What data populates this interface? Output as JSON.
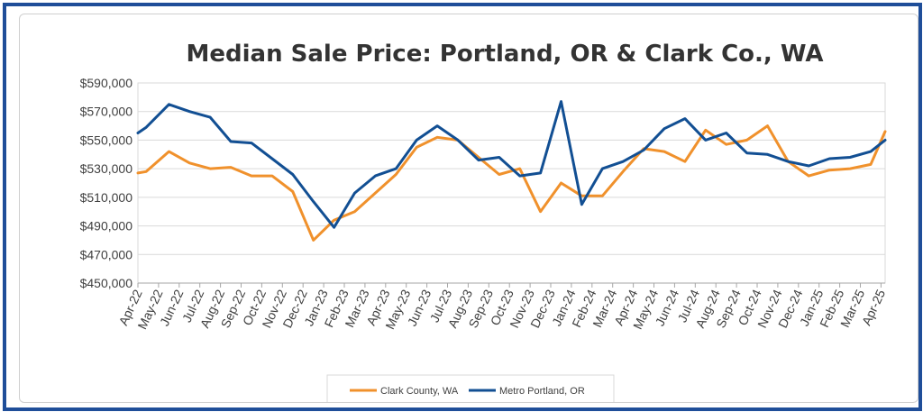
{
  "chart_data": {
    "type": "line",
    "title": "Median Sale Price: Portland, OR & Clark Co., WA",
    "xlabel": "",
    "ylabel": "",
    "ylim": [
      450000,
      590000
    ],
    "yticks": [
      450000,
      470000,
      490000,
      510000,
      530000,
      550000,
      570000,
      590000
    ],
    "ytick_labels": [
      "$450,000",
      "$470,000",
      "$490,000",
      "$510,000",
      "$530,000",
      "$550,000",
      "$570,000",
      "$590,000"
    ],
    "grid": true,
    "legend_position": "bottom-center",
    "categories": [
      "Apr-22",
      "May-22",
      "Jun-22",
      "Jul-22",
      "Aug-22",
      "Sep-22",
      "Oct-22",
      "Nov-22",
      "Dec-22",
      "Jan-23",
      "Feb-23",
      "Mar-23",
      "Apr-23",
      "May-23",
      "Jun-23",
      "Jul-23",
      "Aug-23",
      "Sep-23",
      "Oct-23",
      "Nov-23",
      "Dec-23",
      "Jan-24",
      "Feb-24",
      "Mar-24",
      "Apr-24",
      "May-24",
      "Jun-24",
      "Jul-24",
      "Aug-24",
      "Sep-24",
      "Oct-24",
      "Nov-24",
      "Dec-24",
      "Jan-25",
      "Feb-25",
      "Mar-25",
      "Apr-25"
    ],
    "x": [
      0,
      0.4,
      1,
      2,
      3,
      3.5,
      4,
      5,
      6,
      7,
      8,
      9,
      10,
      11,
      12,
      13,
      14,
      15,
      16,
      17,
      18,
      19,
      20,
      20.5,
      21,
      22,
      23,
      24,
      25,
      26,
      26.8,
      27,
      28,
      29,
      29.5,
      30,
      31,
      32,
      32.5,
      33,
      34,
      35,
      35.2,
      36,
      37,
      38,
      39,
      40,
      41,
      42,
      43,
      44,
      45,
      46,
      47,
      48,
      49,
      50,
      51,
      52,
      53,
      54,
      55,
      56,
      57,
      58,
      59,
      60,
      61,
      62,
      63,
      64,
      65,
      66,
      67,
      68,
      69,
      70,
      71,
      72
    ],
    "series": [
      {
        "name": "Clark County, WA",
        "color": "#f0912c",
        "points": [
          [
            0,
            527000
          ],
          [
            0.4,
            528000
          ],
          [
            1.5,
            542000
          ],
          [
            2.5,
            534000
          ],
          [
            3.5,
            530000
          ],
          [
            4.5,
            531000
          ],
          [
            5.5,
            525000
          ],
          [
            6.5,
            525000
          ],
          [
            7.5,
            514000
          ],
          [
            8.5,
            480000
          ],
          [
            9.5,
            494000
          ],
          [
            10.5,
            500000
          ],
          [
            11.5,
            513000
          ],
          [
            12.5,
            526000
          ],
          [
            13.5,
            545000
          ],
          [
            14.5,
            552000
          ],
          [
            15.5,
            550000
          ],
          [
            16.5,
            538000
          ],
          [
            17.5,
            526000
          ],
          [
            18.5,
            530000
          ],
          [
            19.5,
            500000
          ],
          [
            20.5,
            520000
          ],
          [
            21.5,
            511000
          ],
          [
            22.5,
            511000
          ],
          [
            23.5,
            528000
          ],
          [
            24.5,
            544000
          ],
          [
            25.5,
            542000
          ],
          [
            26.5,
            535000
          ],
          [
            27.5,
            557000
          ],
          [
            28.5,
            547000
          ],
          [
            29.5,
            550000
          ],
          [
            30.5,
            560000
          ],
          [
            31.5,
            535000
          ],
          [
            32.5,
            525000
          ],
          [
            33.5,
            529000
          ],
          [
            34.5,
            530000
          ],
          [
            35.5,
            533000
          ],
          [
            36.2,
            556000
          ]
        ]
      },
      {
        "name": "Metro Portland, OR",
        "color": "#124f93",
        "points": [
          [
            0,
            555000
          ],
          [
            0.4,
            559000
          ],
          [
            1.5,
            575000
          ],
          [
            2.5,
            570000
          ],
          [
            3.5,
            566000
          ],
          [
            4.5,
            549000
          ],
          [
            5.5,
            548000
          ],
          [
            6.5,
            537000
          ],
          [
            7.5,
            526000
          ],
          [
            8.5,
            507000
          ],
          [
            9.5,
            489000
          ],
          [
            10.5,
            513000
          ],
          [
            11.5,
            525000
          ],
          [
            12.5,
            530000
          ],
          [
            13.5,
            550000
          ],
          [
            14.5,
            560000
          ],
          [
            15.5,
            550000
          ],
          [
            16.5,
            536000
          ],
          [
            17.5,
            538000
          ],
          [
            18.5,
            525000
          ],
          [
            19.5,
            527000
          ],
          [
            20.5,
            577000
          ],
          [
            21.5,
            505000
          ],
          [
            22.5,
            530000
          ],
          [
            23.5,
            535000
          ],
          [
            24.5,
            543000
          ],
          [
            25.5,
            558000
          ],
          [
            26.5,
            565000
          ],
          [
            27.5,
            550000
          ],
          [
            28.5,
            555000
          ],
          [
            29.5,
            541000
          ],
          [
            30.5,
            540000
          ],
          [
            31.5,
            535000
          ],
          [
            32.5,
            532000
          ],
          [
            33.5,
            537000
          ],
          [
            34.5,
            538000
          ],
          [
            35.5,
            542000
          ],
          [
            36.2,
            550000
          ]
        ]
      }
    ]
  }
}
